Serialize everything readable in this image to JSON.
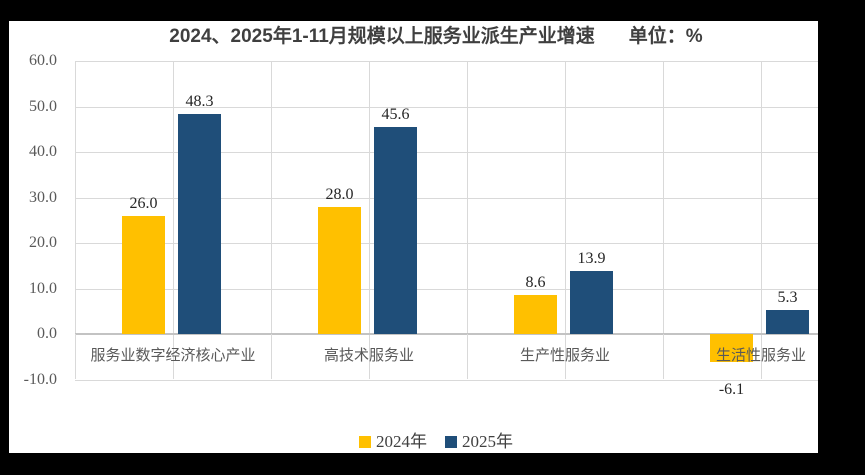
{
  "title": {
    "main": "2024、2025年1-11月规模以上服务业派生产业增速",
    "unit": "单位：%"
  },
  "chart_data": {
    "type": "bar",
    "title": "2024、2025年1-11月规模以上服务业派生产业增速",
    "unit_label": "单位：%",
    "categories": [
      "服务业数字经济核心产业",
      "高技术服务业",
      "生产性服务业",
      "生活性服务业"
    ],
    "series": [
      {
        "name": "2024年",
        "color": "#FFC000",
        "values": [
          26.0,
          28.0,
          8.6,
          -6.1
        ],
        "labels": [
          "26.0",
          "28.0",
          "8.6",
          "-6.1"
        ]
      },
      {
        "name": "2025年",
        "color": "#1F4E79",
        "values": [
          48.3,
          45.6,
          13.9,
          5.3
        ],
        "labels": [
          "48.3",
          "45.6",
          "13.9",
          "5.3"
        ]
      }
    ],
    "yticks": [
      {
        "v": 60,
        "label": "60.0"
      },
      {
        "v": 50,
        "label": "50.0"
      },
      {
        "v": 40,
        "label": "40.0"
      },
      {
        "v": 30,
        "label": "30.0"
      },
      {
        "v": 20,
        "label": "20.0"
      },
      {
        "v": 10,
        "label": "10.0"
      },
      {
        "v": 0,
        "label": "0.0"
      },
      {
        "v": -10,
        "label": "-10.0"
      }
    ],
    "ylim": [
      -10,
      60
    ],
    "grid": true,
    "legend_position": "bottom"
  },
  "colors": {
    "series_2024": "#FFC000",
    "series_2025": "#1F4E79",
    "gridline": "#D9D9D9",
    "axis_line": "#C3C3C3",
    "tick_text": "#595959",
    "category_text": "#595959",
    "data_label_text": "#262626",
    "title_text": "#3F3F3F",
    "legend_text": "#404040",
    "frame": "#000000",
    "chart_bg": "#FFFFFF"
  }
}
